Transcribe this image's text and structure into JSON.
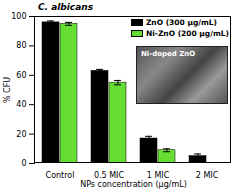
{
  "chart_data": {
    "type": "bar",
    "title": "C. albicans",
    "categories": [
      "Control",
      "0.5 MIC",
      "1 MIC",
      "2 MIC"
    ],
    "series": [
      {
        "name": "ZnO (300 µg/mL)",
        "color": "#000000",
        "values": [
          96,
          63,
          17,
          5
        ],
        "errors": [
          1,
          1,
          1.5,
          1.5
        ]
      },
      {
        "name": "Ni-ZnO (200 µg/mL)",
        "color": "#66dd33",
        "values": [
          95,
          55,
          9,
          0
        ],
        "errors": [
          1,
          1.5,
          1,
          0
        ]
      }
    ],
    "xlabel": "NPs concentration (µg/mL)",
    "ylabel": "% CFU",
    "ylim": [
      0,
      100
    ],
    "yticks": [
      0,
      20,
      40,
      60,
      80,
      100
    ],
    "legend": "top-right",
    "annotations": [
      {
        "text": "Ni-doped ZnO"
      }
    ]
  }
}
